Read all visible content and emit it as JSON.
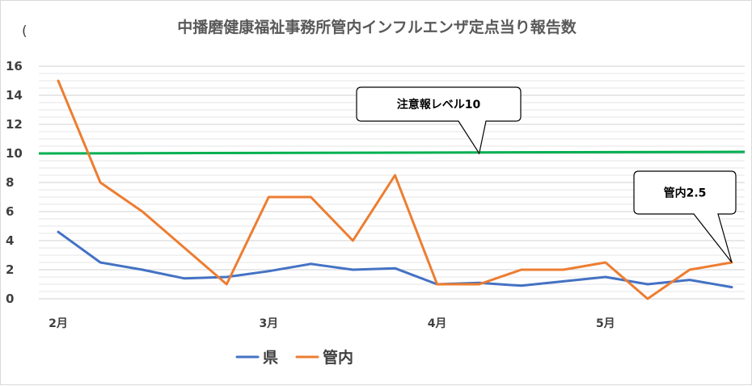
{
  "chart_data": {
    "type": "line",
    "title": "中播磨健康福祉事務所管内インフルエンザ定点当り報告数",
    "title_prefix": "(",
    "ylim": [
      0,
      16
    ],
    "yticks": [
      0,
      2,
      4,
      6,
      8,
      10,
      12,
      14,
      16
    ],
    "grid": "horizontal-minor",
    "x_points": 17,
    "month_labels": [
      {
        "label": "2月",
        "x": 0
      },
      {
        "label": "3月",
        "x": 5
      },
      {
        "label": "4月",
        "x": 9
      },
      {
        "label": "5月",
        "x": 13
      }
    ],
    "legend_position": "bottom-left",
    "series": [
      {
        "name": "県",
        "color": "#4472c4",
        "values": [
          4.6,
          2.5,
          2.0,
          1.4,
          1.5,
          1.9,
          2.4,
          2.0,
          2.1,
          1.0,
          1.1,
          0.9,
          1.2,
          1.5,
          1.0,
          1.3,
          0.8
        ]
      },
      {
        "name": "管内",
        "color": "#ed7d31",
        "values": [
          15.0,
          8.0,
          6.0,
          3.5,
          1.0,
          7.0,
          7.0,
          4.0,
          8.5,
          1.0,
          1.0,
          2.0,
          2.0,
          2.5,
          0.0,
          2.0,
          2.5
        ]
      }
    ],
    "threshold": {
      "value": 10,
      "color": "#00b050"
    },
    "callouts": [
      {
        "text": "注意報レベル10",
        "points_to": {
          "x": 10,
          "y": 10
        }
      },
      {
        "text": "管内2.5",
        "points_to": {
          "x": 16,
          "y": 2.5
        }
      }
    ]
  }
}
